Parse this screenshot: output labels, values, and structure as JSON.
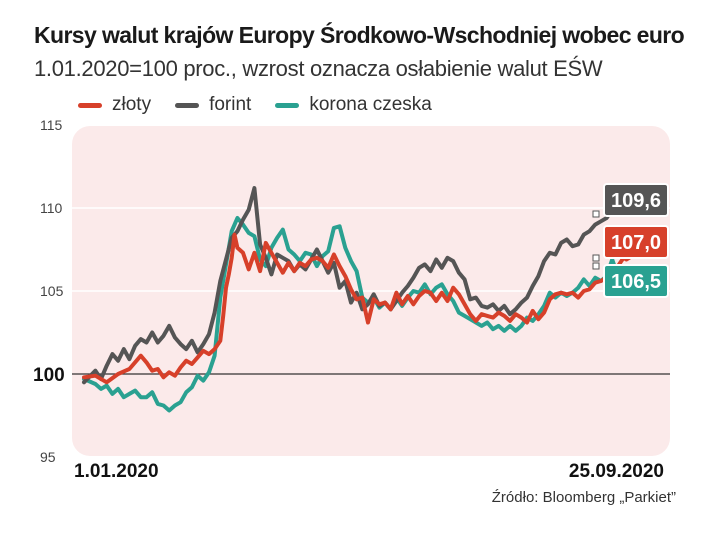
{
  "header": {
    "title": "Kursy walut krajów Europy Środkowo-Wschodniej wobec euro",
    "subtitle": "1.01.2020=100 proc., wzrost oznacza osłabienie walut EŚW"
  },
  "source": "Źródło: Bloomberg „Parkiet”",
  "colors": {
    "zloty": "#d7402a",
    "forint": "#555555",
    "korona": "#2aa191",
    "plot_bg": "#fbeaea",
    "baseline": "#333333"
  },
  "chart_data": {
    "type": "line",
    "title": "Kursy walut krajów Europy Środkowo-Wschodniej wobec euro",
    "subtitle": "1.01.2020=100 proc., wzrost oznacza osłabienie walut EŚW",
    "xlabel": "",
    "ylabel": "",
    "x_range": [
      "1.01.2020",
      "25.09.2020"
    ],
    "x_tick_labels": [
      "1.01.2020",
      "25.09.2020"
    ],
    "y_ticks": [
      {
        "value": 95,
        "label": "95"
      },
      {
        "value": 100,
        "label": "100"
      },
      {
        "value": 105,
        "label": "105"
      },
      {
        "value": 110,
        "label": "110"
      },
      {
        "value": 115,
        "label": "115"
      }
    ],
    "ylim": [
      95,
      115
    ],
    "grid": "horizontal",
    "baseline": 100,
    "legend_position": "top-left",
    "series": [
      {
        "name": "złoty",
        "color": "#d7402a",
        "end_label": "107,0",
        "values": [
          [
            0.0,
            99.8
          ],
          [
            0.02,
            99.9
          ],
          [
            0.04,
            99.5
          ],
          [
            0.06,
            100.0
          ],
          [
            0.08,
            100.3
          ],
          [
            0.1,
            101.1
          ],
          [
            0.11,
            100.7
          ],
          [
            0.12,
            100.2
          ],
          [
            0.13,
            100.3
          ],
          [
            0.14,
            99.8
          ],
          [
            0.15,
            100.1
          ],
          [
            0.16,
            99.9
          ],
          [
            0.17,
            100.4
          ],
          [
            0.18,
            100.8
          ],
          [
            0.19,
            100.6
          ],
          [
            0.2,
            101.0
          ],
          [
            0.21,
            101.4
          ],
          [
            0.22,
            101.2
          ],
          [
            0.23,
            101.5
          ],
          [
            0.24,
            102.0
          ],
          [
            0.245,
            103.5
          ],
          [
            0.25,
            105.2
          ],
          [
            0.255,
            106.0
          ],
          [
            0.26,
            107.0
          ],
          [
            0.265,
            108.4
          ],
          [
            0.27,
            107.6
          ],
          [
            0.28,
            107.3
          ],
          [
            0.29,
            106.3
          ],
          [
            0.3,
            107.3
          ],
          [
            0.31,
            106.2
          ],
          [
            0.32,
            107.9
          ],
          [
            0.33,
            107.3
          ],
          [
            0.34,
            106.7
          ],
          [
            0.35,
            106.1
          ],
          [
            0.36,
            106.7
          ],
          [
            0.37,
            106.2
          ],
          [
            0.38,
            106.7
          ],
          [
            0.39,
            106.5
          ],
          [
            0.4,
            106.9
          ],
          [
            0.41,
            107.0
          ],
          [
            0.42,
            106.8
          ],
          [
            0.43,
            106.4
          ],
          [
            0.44,
            107.2
          ],
          [
            0.45,
            106.5
          ],
          [
            0.46,
            105.9
          ],
          [
            0.47,
            105.1
          ],
          [
            0.48,
            104.5
          ],
          [
            0.49,
            104.6
          ],
          [
            0.5,
            103.1
          ],
          [
            0.51,
            104.5
          ],
          [
            0.52,
            104.2
          ],
          [
            0.53,
            104.3
          ],
          [
            0.54,
            103.9
          ],
          [
            0.55,
            104.9
          ],
          [
            0.56,
            104.2
          ],
          [
            0.57,
            104.7
          ],
          [
            0.58,
            104.2
          ],
          [
            0.59,
            104.7
          ],
          [
            0.6,
            105.0
          ],
          [
            0.61,
            104.9
          ],
          [
            0.62,
            104.4
          ],
          [
            0.63,
            104.9
          ],
          [
            0.64,
            104.4
          ],
          [
            0.65,
            105.2
          ],
          [
            0.66,
            104.8
          ],
          [
            0.67,
            104.2
          ],
          [
            0.68,
            103.6
          ],
          [
            0.69,
            103.2
          ],
          [
            0.7,
            103.6
          ],
          [
            0.71,
            103.5
          ],
          [
            0.72,
            103.4
          ],
          [
            0.73,
            103.7
          ],
          [
            0.74,
            103.5
          ],
          [
            0.75,
            103.2
          ],
          [
            0.76,
            103.6
          ],
          [
            0.77,
            103.4
          ],
          [
            0.78,
            103.1
          ],
          [
            0.79,
            103.8
          ],
          [
            0.8,
            103.3
          ],
          [
            0.81,
            103.7
          ],
          [
            0.82,
            104.5
          ],
          [
            0.83,
            104.8
          ],
          [
            0.84,
            104.9
          ],
          [
            0.85,
            104.8
          ],
          [
            0.86,
            104.9
          ],
          [
            0.87,
            104.6
          ],
          [
            0.88,
            105.0
          ],
          [
            0.89,
            105.1
          ],
          [
            0.9,
            105.5
          ],
          [
            0.91,
            105.6
          ],
          [
            0.92,
            105.8
          ],
          [
            0.93,
            105.8
          ],
          [
            0.94,
            106.5
          ],
          [
            0.95,
            107.0
          ],
          [
            0.955,
            106.9
          ],
          [
            0.96,
            107.0
          ]
        ]
      },
      {
        "name": "forint",
        "color": "#555555",
        "end_label": "109,6",
        "values": [
          [
            0.0,
            99.5
          ],
          [
            0.02,
            100.2
          ],
          [
            0.03,
            99.7
          ],
          [
            0.04,
            100.5
          ],
          [
            0.05,
            101.2
          ],
          [
            0.06,
            100.8
          ],
          [
            0.07,
            101.5
          ],
          [
            0.08,
            100.9
          ],
          [
            0.09,
            101.7
          ],
          [
            0.1,
            102.1
          ],
          [
            0.11,
            101.9
          ],
          [
            0.12,
            102.5
          ],
          [
            0.13,
            101.9
          ],
          [
            0.14,
            102.3
          ],
          [
            0.15,
            102.9
          ],
          [
            0.16,
            102.2
          ],
          [
            0.17,
            101.8
          ],
          [
            0.18,
            101.5
          ],
          [
            0.19,
            102.0
          ],
          [
            0.2,
            101.3
          ],
          [
            0.21,
            101.8
          ],
          [
            0.22,
            102.4
          ],
          [
            0.23,
            103.7
          ],
          [
            0.24,
            105.6
          ],
          [
            0.25,
            106.9
          ],
          [
            0.26,
            108.2
          ],
          [
            0.27,
            108.6
          ],
          [
            0.28,
            109.3
          ],
          [
            0.29,
            109.9
          ],
          [
            0.3,
            111.2
          ],
          [
            0.31,
            107.8
          ],
          [
            0.32,
            107.0
          ],
          [
            0.33,
            106.0
          ],
          [
            0.34,
            107.2
          ],
          [
            0.35,
            107.0
          ],
          [
            0.36,
            106.8
          ],
          [
            0.37,
            106.2
          ],
          [
            0.38,
            106.6
          ],
          [
            0.39,
            106.3
          ],
          [
            0.4,
            106.9
          ],
          [
            0.41,
            107.5
          ],
          [
            0.42,
            106.8
          ],
          [
            0.43,
            106.1
          ],
          [
            0.44,
            106.7
          ],
          [
            0.45,
            105.2
          ],
          [
            0.46,
            105.6
          ],
          [
            0.47,
            104.3
          ],
          [
            0.48,
            104.9
          ],
          [
            0.49,
            103.9
          ],
          [
            0.5,
            104.2
          ],
          [
            0.51,
            104.8
          ],
          [
            0.52,
            104.1
          ],
          [
            0.53,
            104.3
          ],
          [
            0.54,
            103.9
          ],
          [
            0.55,
            104.4
          ],
          [
            0.56,
            104.9
          ],
          [
            0.57,
            105.3
          ],
          [
            0.58,
            105.8
          ],
          [
            0.59,
            106.4
          ],
          [
            0.6,
            106.6
          ],
          [
            0.61,
            106.2
          ],
          [
            0.62,
            106.9
          ],
          [
            0.63,
            106.4
          ],
          [
            0.64,
            107.0
          ],
          [
            0.65,
            106.8
          ],
          [
            0.66,
            106.1
          ],
          [
            0.67,
            105.7
          ],
          [
            0.68,
            104.5
          ],
          [
            0.69,
            104.6
          ],
          [
            0.7,
            104.1
          ],
          [
            0.71,
            104.0
          ],
          [
            0.72,
            104.2
          ],
          [
            0.73,
            103.8
          ],
          [
            0.74,
            104.1
          ],
          [
            0.75,
            103.6
          ],
          [
            0.76,
            103.9
          ],
          [
            0.77,
            104.3
          ],
          [
            0.78,
            104.6
          ],
          [
            0.79,
            105.3
          ],
          [
            0.8,
            105.9
          ],
          [
            0.81,
            106.8
          ],
          [
            0.82,
            107.3
          ],
          [
            0.83,
            107.2
          ],
          [
            0.84,
            107.9
          ],
          [
            0.85,
            108.1
          ],
          [
            0.86,
            107.7
          ],
          [
            0.87,
            107.8
          ],
          [
            0.88,
            108.4
          ],
          [
            0.89,
            108.6
          ],
          [
            0.9,
            109.0
          ],
          [
            0.91,
            109.2
          ],
          [
            0.92,
            109.4
          ],
          [
            0.93,
            109.9
          ],
          [
            0.94,
            110.1
          ],
          [
            0.95,
            109.6
          ]
        ]
      },
      {
        "name": "korona czeska",
        "color": "#2aa191",
        "end_label": "106,5",
        "values": [
          [
            0.0,
            99.7
          ],
          [
            0.02,
            99.4
          ],
          [
            0.03,
            99.1
          ],
          [
            0.04,
            99.3
          ],
          [
            0.05,
            98.8
          ],
          [
            0.06,
            99.1
          ],
          [
            0.07,
            98.6
          ],
          [
            0.08,
            98.8
          ],
          [
            0.09,
            99.0
          ],
          [
            0.1,
            98.6
          ],
          [
            0.11,
            98.6
          ],
          [
            0.12,
            98.9
          ],
          [
            0.13,
            98.2
          ],
          [
            0.14,
            98.1
          ],
          [
            0.15,
            97.8
          ],
          [
            0.16,
            98.1
          ],
          [
            0.17,
            98.3
          ],
          [
            0.18,
            98.9
          ],
          [
            0.19,
            99.2
          ],
          [
            0.2,
            99.9
          ],
          [
            0.21,
            99.6
          ],
          [
            0.22,
            100.1
          ],
          [
            0.23,
            101.1
          ],
          [
            0.24,
            104.6
          ],
          [
            0.25,
            106.6
          ],
          [
            0.26,
            108.6
          ],
          [
            0.27,
            109.4
          ],
          [
            0.28,
            109.0
          ],
          [
            0.29,
            108.5
          ],
          [
            0.3,
            108.3
          ],
          [
            0.31,
            106.9
          ],
          [
            0.32,
            106.5
          ],
          [
            0.33,
            107.6
          ],
          [
            0.34,
            108.2
          ],
          [
            0.35,
            108.7
          ],
          [
            0.36,
            107.5
          ],
          [
            0.37,
            107.2
          ],
          [
            0.38,
            106.8
          ],
          [
            0.39,
            107.3
          ],
          [
            0.4,
            107.2
          ],
          [
            0.41,
            106.5
          ],
          [
            0.42,
            107.1
          ],
          [
            0.43,
            107.4
          ],
          [
            0.44,
            108.8
          ],
          [
            0.45,
            108.9
          ],
          [
            0.46,
            107.6
          ],
          [
            0.47,
            106.8
          ],
          [
            0.48,
            106.2
          ],
          [
            0.49,
            104.6
          ],
          [
            0.5,
            104.3
          ],
          [
            0.51,
            104.6
          ],
          [
            0.52,
            104.0
          ],
          [
            0.53,
            104.3
          ],
          [
            0.54,
            103.9
          ],
          [
            0.55,
            104.6
          ],
          [
            0.56,
            104.1
          ],
          [
            0.57,
            104.6
          ],
          [
            0.58,
            105.0
          ],
          [
            0.59,
            104.9
          ],
          [
            0.6,
            105.4
          ],
          [
            0.61,
            104.8
          ],
          [
            0.62,
            105.2
          ],
          [
            0.63,
            105.4
          ],
          [
            0.64,
            104.8
          ],
          [
            0.65,
            104.4
          ],
          [
            0.66,
            103.7
          ],
          [
            0.67,
            103.5
          ],
          [
            0.68,
            103.3
          ],
          [
            0.69,
            103.1
          ],
          [
            0.7,
            102.9
          ],
          [
            0.71,
            103.1
          ],
          [
            0.72,
            102.7
          ],
          [
            0.73,
            102.9
          ],
          [
            0.74,
            102.6
          ],
          [
            0.75,
            102.9
          ],
          [
            0.76,
            102.6
          ],
          [
            0.77,
            102.9
          ],
          [
            0.78,
            103.4
          ],
          [
            0.79,
            103.2
          ],
          [
            0.8,
            103.6
          ],
          [
            0.81,
            104.1
          ],
          [
            0.82,
            104.9
          ],
          [
            0.83,
            104.6
          ],
          [
            0.84,
            104.9
          ],
          [
            0.85,
            104.7
          ],
          [
            0.86,
            104.9
          ],
          [
            0.87,
            105.2
          ],
          [
            0.88,
            105.7
          ],
          [
            0.89,
            105.3
          ],
          [
            0.9,
            105.8
          ],
          [
            0.91,
            105.6
          ],
          [
            0.92,
            105.9
          ],
          [
            0.93,
            106.9
          ],
          [
            0.94,
            105.9
          ],
          [
            0.95,
            106.5
          ]
        ]
      }
    ]
  }
}
